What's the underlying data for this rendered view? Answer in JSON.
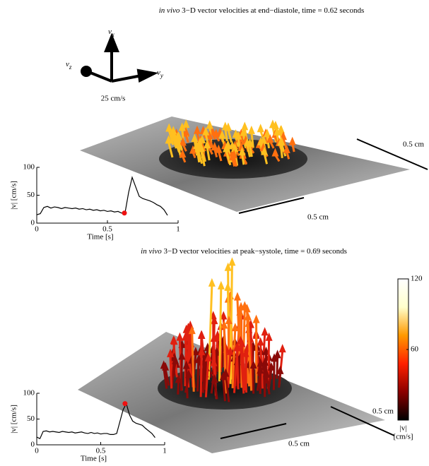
{
  "panels": [
    {
      "title_italic": "in vivo",
      "title": "3−D vector velocities at end−diastole, time = 0.62 seconds",
      "scale_labels": [
        "0.5 cm",
        "0.5 cm"
      ]
    },
    {
      "title_italic": "in vivo",
      "title": "3−D vector velocities at peak−systole, time = 0.69 seconds",
      "scale_labels": [
        "0.5 cm",
        "0.5 cm"
      ]
    }
  ],
  "triad": {
    "labels": [
      {
        "symbol": "v",
        "subscript": "x"
      },
      {
        "symbol": "v",
        "subscript": "z"
      },
      {
        "symbol": "v",
        "subscript": "y"
      }
    ],
    "scale": "25 cm/s"
  },
  "chart_data": [
    {
      "type": "line",
      "xlabel": "Time [s]",
      "ylabel": "|v| [cm/s]",
      "xlim": [
        0,
        1
      ],
      "xticks": [
        0,
        0.5,
        1
      ],
      "ylim": [
        0,
        100
      ],
      "yticks": [
        0,
        50,
        100
      ],
      "color": "#000000",
      "x": [
        0,
        0.025,
        0.05,
        0.075,
        0.1,
        0.125,
        0.15,
        0.175,
        0.2,
        0.225,
        0.25,
        0.275,
        0.3,
        0.325,
        0.35,
        0.375,
        0.4,
        0.425,
        0.45,
        0.475,
        0.5,
        0.525,
        0.55,
        0.575,
        0.6,
        0.625,
        0.65,
        0.675,
        0.7,
        0.725,
        0.75,
        0.775,
        0.8,
        0.825,
        0.85,
        0.875,
        0.9,
        0.925
      ],
      "values": [
        15,
        17,
        28,
        30,
        27,
        29,
        28,
        26,
        28,
        27,
        26,
        27,
        25,
        26,
        24,
        25,
        23,
        24,
        22,
        23,
        21,
        22,
        20,
        21,
        18,
        19,
        55,
        82,
        65,
        48,
        44,
        42,
        40,
        37,
        33,
        30,
        24,
        14
      ],
      "highlight": {
        "x": 0.62,
        "y": 18,
        "color": "#ee1111"
      }
    },
    {
      "type": "line",
      "xlabel": "Time [s]",
      "ylabel": "|v| [cm/s]",
      "xlim": [
        0,
        1
      ],
      "xticks": [
        0,
        0.5,
        1
      ],
      "ylim": [
        0,
        100
      ],
      "yticks": [
        0,
        50,
        100
      ],
      "color": "#000000",
      "x": [
        0,
        0.025,
        0.05,
        0.075,
        0.1,
        0.125,
        0.15,
        0.175,
        0.2,
        0.225,
        0.25,
        0.275,
        0.3,
        0.325,
        0.35,
        0.375,
        0.4,
        0.425,
        0.45,
        0.475,
        0.5,
        0.525,
        0.55,
        0.575,
        0.6,
        0.625,
        0.65,
        0.675,
        0.7,
        0.725,
        0.75,
        0.775,
        0.8,
        0.825,
        0.85,
        0.875,
        0.9,
        0.925
      ],
      "values": [
        15,
        12,
        26,
        27,
        25,
        26,
        25,
        24,
        26,
        25,
        24,
        25,
        23,
        24,
        25,
        23,
        22,
        24,
        22,
        23,
        21,
        22,
        22,
        20,
        20,
        22,
        45,
        68,
        80,
        58,
        46,
        42,
        40,
        38,
        32,
        27,
        22,
        14
      ],
      "highlight": {
        "x": 0.69,
        "y": 80,
        "color": "#ee1111"
      }
    },
    {
      "type": "colorbar",
      "label": [
        "|v|",
        "[cm/s]"
      ],
      "ylim": [
        0,
        120
      ],
      "yticks": [
        60,
        120
      ],
      "colors": [
        "#000000",
        "#8b0000",
        "#ff2000",
        "#ff9900",
        "#ffffcc",
        "#ffffff"
      ]
    }
  ]
}
